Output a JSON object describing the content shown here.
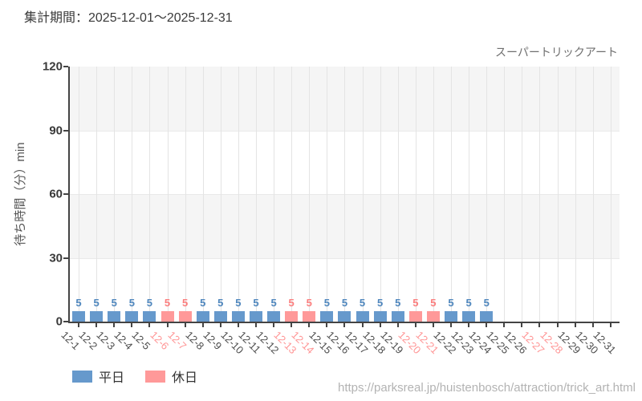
{
  "page": {
    "period_title": "集計期間：2025-12-01～2025-12-31",
    "attraction_name": "スーパートリックアート",
    "source_url": "https://parksreal.jp/huistenbosch/attraction/trick_art.html"
  },
  "legend": {
    "items": [
      {
        "label": "平日",
        "color": "#6699cc"
      },
      {
        "label": "休日",
        "color": "#ff9999"
      }
    ]
  },
  "chart_data": {
    "type": "bar",
    "title": "スーパートリックアート",
    "period": "2025-12-01～2025-12-31",
    "xlabel": "",
    "ylabel": "待ち時間（分）min",
    "ylim": [
      0,
      120
    ],
    "yticks": [
      0,
      30,
      60,
      90,
      120
    ],
    "grid": "alternating horizontal bands every 30 units, vertical gridline per day",
    "legend_position": "bottom-left",
    "categories": [
      "12-1",
      "12-2",
      "12-3",
      "12-4",
      "12-5",
      "12-6",
      "12-7",
      "12-8",
      "12-9",
      "12-10",
      "12-11",
      "12-12",
      "12-13",
      "12-14",
      "12-15",
      "12-16",
      "12-17",
      "12-18",
      "12-19",
      "12-20",
      "12-21",
      "12-22",
      "12-23",
      "12-24",
      "12-25",
      "12-26",
      "12-27",
      "12-28",
      "12-29",
      "12-30",
      "12-31"
    ],
    "series": [
      {
        "name": "平日",
        "color": "#6699cc",
        "values": [
          5,
          5,
          5,
          5,
          5,
          null,
          null,
          5,
          5,
          5,
          5,
          5,
          null,
          null,
          5,
          5,
          5,
          5,
          5,
          null,
          null,
          5,
          5,
          5,
          null,
          null,
          null,
          null,
          null,
          null,
          null
        ]
      },
      {
        "name": "休日",
        "color": "#ff9999",
        "values": [
          null,
          null,
          null,
          null,
          null,
          5,
          5,
          null,
          null,
          null,
          null,
          null,
          5,
          5,
          null,
          null,
          null,
          null,
          null,
          5,
          5,
          null,
          null,
          null,
          null,
          null,
          null,
          null,
          null,
          null,
          null
        ]
      }
    ],
    "days": [
      {
        "label": "12-1",
        "type": "weekday",
        "value": 5
      },
      {
        "label": "12-2",
        "type": "weekday",
        "value": 5
      },
      {
        "label": "12-3",
        "type": "weekday",
        "value": 5
      },
      {
        "label": "12-4",
        "type": "weekday",
        "value": 5
      },
      {
        "label": "12-5",
        "type": "weekday",
        "value": 5
      },
      {
        "label": "12-6",
        "type": "holiday",
        "value": 5
      },
      {
        "label": "12-7",
        "type": "holiday",
        "value": 5
      },
      {
        "label": "12-8",
        "type": "weekday",
        "value": 5
      },
      {
        "label": "12-9",
        "type": "weekday",
        "value": 5
      },
      {
        "label": "12-10",
        "type": "weekday",
        "value": 5
      },
      {
        "label": "12-11",
        "type": "weekday",
        "value": 5
      },
      {
        "label": "12-12",
        "type": "weekday",
        "value": 5
      },
      {
        "label": "12-13",
        "type": "holiday",
        "value": 5
      },
      {
        "label": "12-14",
        "type": "holiday",
        "value": 5
      },
      {
        "label": "12-15",
        "type": "weekday",
        "value": 5
      },
      {
        "label": "12-16",
        "type": "weekday",
        "value": 5
      },
      {
        "label": "12-17",
        "type": "weekday",
        "value": 5
      },
      {
        "label": "12-18",
        "type": "weekday",
        "value": 5
      },
      {
        "label": "12-19",
        "type": "weekday",
        "value": 5
      },
      {
        "label": "12-20",
        "type": "holiday",
        "value": 5
      },
      {
        "label": "12-21",
        "type": "holiday",
        "value": 5
      },
      {
        "label": "12-22",
        "type": "weekday",
        "value": 5
      },
      {
        "label": "12-23",
        "type": "weekday",
        "value": 5
      },
      {
        "label": "12-24",
        "type": "weekday",
        "value": 5
      },
      {
        "label": "12-25",
        "type": "weekday",
        "value": null
      },
      {
        "label": "12-26",
        "type": "weekday",
        "value": null
      },
      {
        "label": "12-27",
        "type": "holiday",
        "value": null
      },
      {
        "label": "12-28",
        "type": "holiday",
        "value": null
      },
      {
        "label": "12-29",
        "type": "weekday",
        "value": null
      },
      {
        "label": "12-30",
        "type": "weekday",
        "value": null
      },
      {
        "label": "12-31",
        "type": "weekday",
        "value": null
      }
    ],
    "colors": {
      "weekday_bar": "#6699cc",
      "holiday_bar": "#ff9999",
      "weekday_value": "#4e86bd",
      "holiday_value": "#fb7d7d",
      "weekday_tick_label": "#4d4d4d",
      "holiday_tick_label": "#ff9595",
      "axis": "#444444",
      "grid_line": "#e4e4e4",
      "band_fill": "#f5f5f5"
    }
  }
}
